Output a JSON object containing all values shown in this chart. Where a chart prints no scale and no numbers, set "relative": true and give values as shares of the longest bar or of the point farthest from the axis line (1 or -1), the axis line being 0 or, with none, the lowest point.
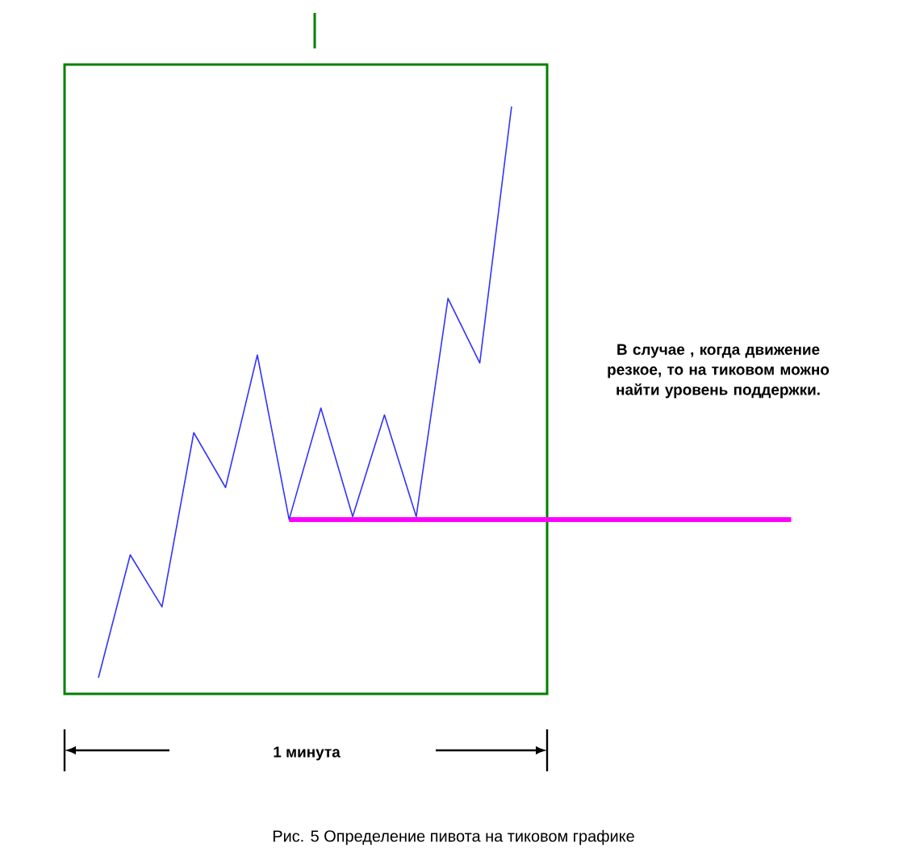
{
  "chart_data": {
    "type": "line",
    "relative": true,
    "categories": [
      null,
      null,
      null,
      null,
      null,
      null,
      null,
      null,
      null,
      null,
      null,
      null,
      null,
      null
    ],
    "series": [
      {
        "color": "#3333ff",
        "values": [
          0,
          0.215,
          0.124,
          0.429,
          0.333,
          0.565,
          0.277,
          0.472,
          0.282,
          0.46,
          0.282,
          0.664,
          0.551,
          1
        ]
      }
    ],
    "ref_lines": [
      {
        "axis": "y",
        "value": 0.277,
        "color": "#ff00ff"
      }
    ],
    "annotations": [
      "В случае , когда движение резкое, то на тиковом можно найти уровень поддержки.",
      "1 минута",
      "Рис. 5 Определение пивота на тиковом графике"
    ]
  }
}
